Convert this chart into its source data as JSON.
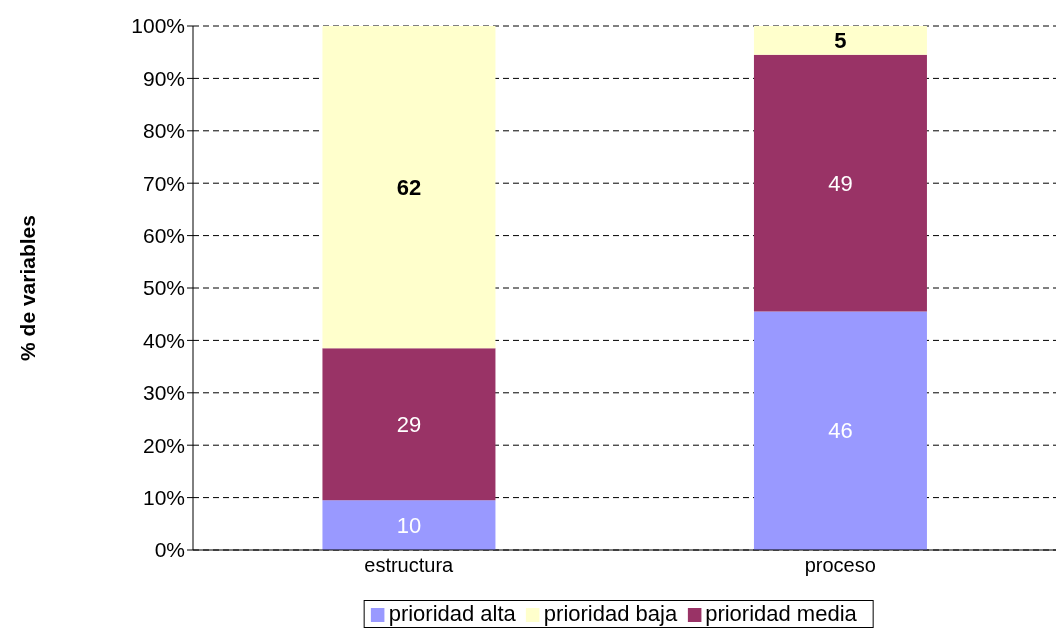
{
  "chart_data": {
    "type": "bar",
    "stacked": true,
    "ylabel": "% de variables",
    "categories": [
      "estructura",
      "proceso"
    ],
    "series": [
      {
        "name": "prioridad alta",
        "color": "#9999ff",
        "values": [
          9.5,
          45.5
        ],
        "value_labels": [
          "10",
          "46"
        ]
      },
      {
        "name": "prioridad media",
        "color": "#993366",
        "values": [
          29,
          49
        ],
        "value_labels": [
          "29",
          "49"
        ]
      },
      {
        "name": "prioridad baja",
        "color": "#ffffcc",
        "values": [
          61.5,
          5.5
        ],
        "value_labels": [
          "62",
          "5"
        ]
      }
    ],
    "ylim": [
      0,
      100
    ],
    "yticks": [
      {
        "value": 0,
        "label": "0%"
      },
      {
        "value": 10,
        "label": "10%"
      },
      {
        "value": 20,
        "label": "20%"
      },
      {
        "value": 30,
        "label": "30%"
      },
      {
        "value": 40,
        "label": "40%"
      },
      {
        "value": 50,
        "label": "50%"
      },
      {
        "value": 60,
        "label": "60%"
      },
      {
        "value": 70,
        "label": "70%"
      },
      {
        "value": 80,
        "label": "80%"
      },
      {
        "value": 90,
        "label": "90%"
      },
      {
        "value": 100,
        "label": "100%"
      }
    ],
    "grid": "y",
    "legend": "bottom"
  }
}
